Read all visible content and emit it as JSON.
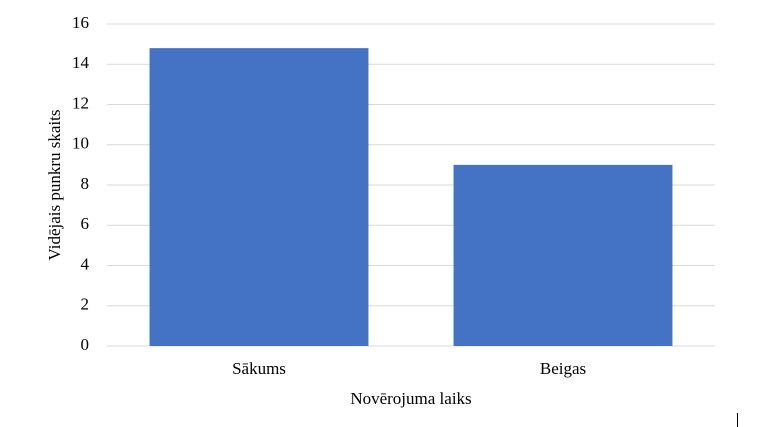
{
  "chart_data": {
    "type": "bar",
    "x_label": "Novērojuma laiks",
    "y_label": "Vidējais punkru skaits",
    "categories": [
      "Sākums",
      "Beigas"
    ],
    "values": [
      14.8,
      9.0
    ],
    "color": "#4472c4",
    "ylim": [
      0,
      16
    ],
    "yticks": [
      0,
      2,
      4,
      6,
      8,
      10,
      12,
      14,
      16
    ],
    "grid": true
  }
}
